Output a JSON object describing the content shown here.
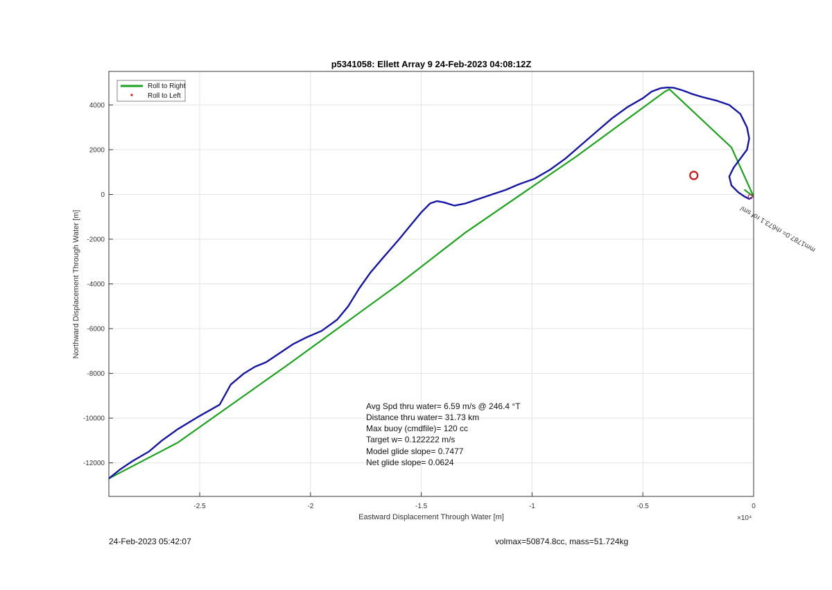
{
  "chart_data": {
    "type": "line",
    "title": "p5341058: Ellett Array 9 24-Feb-2023 04:08:12Z",
    "xlabel": "Eastward Displacement Through Water [m]",
    "ylabel": "Northward Displacement Through Water [m]",
    "x_multiplier": "×10⁴",
    "xlim": [
      -29100,
      0
    ],
    "ylim": [
      -13500,
      5500
    ],
    "x_ticks": [
      -25000,
      -20000,
      -15000,
      -10000,
      -5000,
      0
    ],
    "x_tick_labels": [
      "-2.5",
      "-2",
      "-1.5",
      "-1",
      "-0.5",
      "0"
    ],
    "y_ticks": [
      -12000,
      -10000,
      -8000,
      -6000,
      -4000,
      -2000,
      0,
      2000,
      4000
    ],
    "y_tick_labels": [
      "-12000",
      "-10000",
      "-8000",
      "-6000",
      "-4000",
      "-2000",
      "0",
      "2000",
      "4000"
    ],
    "grid": true,
    "legend": {
      "placement": "top-left",
      "entries": [
        {
          "label": "Roll to Right",
          "color": "#1aa31a",
          "style": "line"
        },
        {
          "label": "Roll to Left",
          "color": "#e01010",
          "style": "dot"
        }
      ]
    },
    "series": [
      {
        "color": "#1aa31a",
        "x": [
          -29100,
          -26000,
          -21000,
          -16000,
          -13000,
          -8000,
          -4000,
          -3800,
          -1000,
          0,
          -400
        ],
        "y": [
          -12700,
          -11100,
          -7600,
          -4000,
          -1700,
          1700,
          4600,
          4700,
          2100,
          -100,
          200
        ]
      },
      {
        "color": "#1414a6",
        "x": [
          -29100,
          -28600,
          -28000,
          -27300,
          -26700,
          -26000,
          -25000,
          -24100,
          -23600,
          -23000,
          -22500,
          -22000,
          -21400,
          -20800,
          -20200,
          -19500,
          -18800,
          -18300,
          -17800,
          -17300,
          -16700,
          -16000,
          -15500,
          -15000,
          -14600,
          -14300,
          -14000,
          -13500,
          -13000,
          -12400,
          -11800,
          -11200,
          -10600,
          -9900,
          -9200,
          -8500,
          -7800,
          -7100,
          -6400,
          -5700,
          -5000,
          -4600,
          -4200,
          -3900,
          -3600,
          -3200,
          -2800,
          -2300,
          -1700,
          -1100,
          -600,
          -300,
          -200,
          -300,
          -600,
          -900,
          -1100,
          -1000,
          -700,
          -400,
          -200,
          -100
        ],
        "y": [
          -12700,
          -12300,
          -11900,
          -11500,
          -11000,
          -10500,
          -9900,
          -9400,
          -8500,
          -8000,
          -7700,
          -7500,
          -7100,
          -6700,
          -6400,
          -6100,
          -5600,
          -5000,
          -4200,
          -3500,
          -2800,
          -2000,
          -1400,
          -800,
          -400,
          -300,
          -350,
          -500,
          -400,
          -200,
          0,
          200,
          450,
          700,
          1100,
          1600,
          2200,
          2800,
          3400,
          3900,
          4300,
          4600,
          4750,
          4780,
          4770,
          4650,
          4500,
          4350,
          4200,
          4000,
          3600,
          3000,
          2500,
          2000,
          1600,
          1200,
          800,
          400,
          100,
          -100,
          -200,
          -150
        ]
      }
    ],
    "marker": {
      "x": -2700,
      "y": 850,
      "color": "#cc1111",
      "shape": "circle"
    },
    "rotated_annotation": "mm1787.0= rh673.1 rof sm/",
    "stats": [
      "Avg Spd thru water=  6.59 m/s @ 246.4 °T",
      "Distance thru water= 31.73 km",
      "Max buoy (cmdfile)= 120 cc",
      "Target w= 0.122222 m/s",
      "Model glide slope= 0.7477",
      "Net glide slope= 0.0624"
    ],
    "footer_left": "24-Feb-2023 05:42:07",
    "footer_right": "volmax=50874.8cc, mass=51.724kg"
  }
}
